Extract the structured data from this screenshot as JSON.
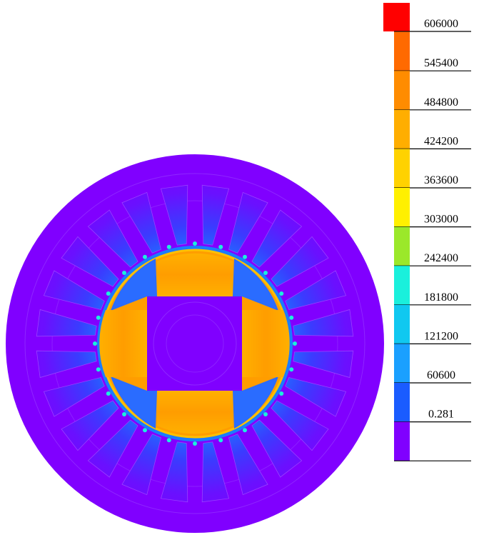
{
  "figure": {
    "background": "#ffffff",
    "stator_color": "#8000ff",
    "magnet_color": "#ff9d00",
    "magnet_edge_color": "#ffc000",
    "rotor_color": "#8000ff",
    "airgap_color": "#1a7cff"
  },
  "legend": {
    "bands": [
      {
        "value": "606000",
        "color": "#ff0000"
      },
      {
        "value": "545400",
        "color": "#ff6a00"
      },
      {
        "value": "484800",
        "color": "#ff8c00"
      },
      {
        "value": "424200",
        "color": "#ffae00"
      },
      {
        "value": "363600",
        "color": "#ffd200"
      },
      {
        "value": "303000",
        "color": "#fff000"
      },
      {
        "value": "242400",
        "color": "#9be82a"
      },
      {
        "value": "181800",
        "color": "#1af0dc"
      },
      {
        "value": "121200",
        "color": "#10c8f0"
      },
      {
        "value": "60600",
        "color": "#1aa0ff"
      },
      {
        "value": "0.281",
        "color": "#1a5cff"
      },
      {
        "value": "",
        "color": "#8000ff"
      }
    ]
  }
}
